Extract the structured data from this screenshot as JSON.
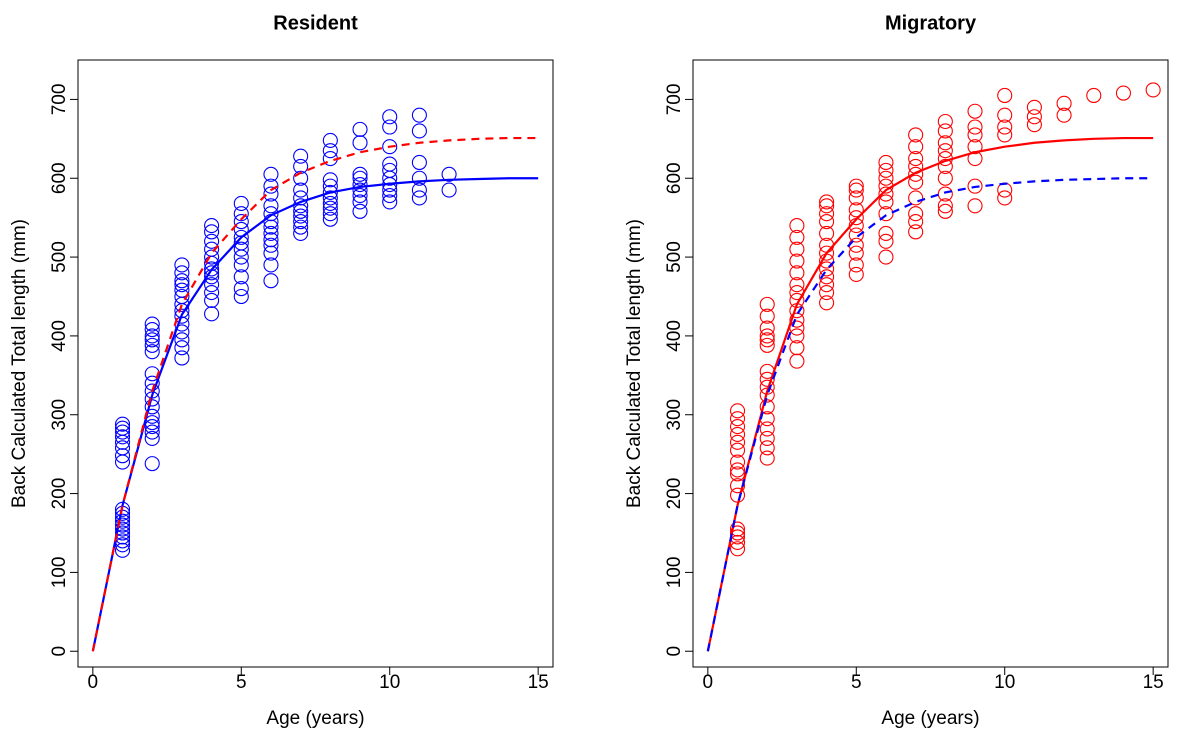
{
  "chart_data": [
    {
      "type": "scatter",
      "title": "Resident",
      "x_label": "Age (years)",
      "y_label": "Back Calculated Total length (mm)",
      "xlim": [
        -0.5,
        15.5
      ],
      "ylim": [
        -20,
        750
      ],
      "xticks": [
        0,
        5,
        10,
        15
      ],
      "yticks": [
        0,
        100,
        200,
        300,
        400,
        500,
        600,
        700
      ],
      "series": [
        {
          "style": "circles",
          "color": "#0000ff",
          "x": [
            1,
            1,
            1,
            1,
            1,
            1,
            1,
            1,
            1,
            1,
            1,
            1,
            1,
            1,
            1,
            1,
            1,
            1,
            1,
            2,
            2,
            2,
            2,
            2,
            2,
            2,
            2,
            2,
            2,
            2,
            2,
            2,
            2,
            2,
            2,
            2,
            3,
            3,
            3,
            3,
            3,
            3,
            3,
            3,
            3,
            3,
            3,
            3,
            3,
            3,
            4,
            4,
            4,
            4,
            4,
            4,
            4,
            4,
            4,
            4,
            4,
            4,
            4,
            5,
            5,
            5,
            5,
            5,
            5,
            5,
            5,
            5,
            5,
            5,
            5,
            6,
            6,
            6,
            6,
            6,
            6,
            6,
            6,
            6,
            6,
            6,
            6,
            6,
            7,
            7,
            7,
            7,
            7,
            7,
            7,
            7,
            7,
            7,
            7,
            8,
            8,
            8,
            8,
            8,
            8,
            8,
            8,
            8,
            8,
            8,
            9,
            9,
            9,
            9,
            9,
            9,
            9,
            9,
            9,
            10,
            10,
            10,
            10,
            10,
            10,
            10,
            10,
            10,
            10,
            11,
            11,
            11,
            11,
            11,
            11,
            12,
            12
          ],
          "values": [
            128,
            135,
            140,
            145,
            150,
            155,
            160,
            165,
            170,
            175,
            180,
            240,
            248,
            258,
            265,
            272,
            278,
            283,
            288,
            238,
            270,
            278,
            285,
            290,
            298,
            310,
            320,
            330,
            340,
            352,
            380,
            388,
            395,
            400,
            408,
            415,
            372,
            385,
            395,
            405,
            415,
            425,
            432,
            440,
            450,
            458,
            465,
            470,
            480,
            490,
            428,
            445,
            455,
            465,
            475,
            480,
            485,
            492,
            500,
            510,
            520,
            532,
            540,
            450,
            460,
            475,
            490,
            500,
            510,
            518,
            525,
            535,
            545,
            555,
            568,
            470,
            490,
            505,
            515,
            522,
            530,
            538,
            545,
            555,
            565,
            580,
            590,
            605,
            530,
            538,
            545,
            552,
            558,
            565,
            575,
            585,
            600,
            615,
            628,
            548,
            555,
            562,
            568,
            575,
            582,
            590,
            598,
            625,
            635,
            648,
            558,
            570,
            578,
            585,
            592,
            600,
            605,
            645,
            662,
            570,
            578,
            585,
            592,
            600,
            610,
            618,
            640,
            665,
            678,
            575,
            585,
            600,
            620,
            660,
            680,
            585,
            605
          ]
        },
        {
          "style": "solid",
          "color": "#0000ff",
          "x": [
            0,
            1,
            2,
            3,
            4,
            5,
            6,
            7,
            8,
            9,
            10,
            11,
            12,
            13,
            14,
            15
          ],
          "values": [
            0,
            185,
            325,
            427,
            484,
            525,
            553,
            570,
            582,
            589,
            593,
            596,
            598,
            599,
            600,
            600
          ]
        },
        {
          "style": "dashed",
          "color": "#ff0000",
          "x": [
            0,
            1,
            2,
            3,
            4,
            5,
            6,
            7,
            8,
            9,
            10,
            11,
            12,
            13,
            14,
            15
          ],
          "values": [
            0,
            185,
            330,
            440,
            505,
            548,
            585,
            607,
            622,
            633,
            640,
            645,
            648,
            650,
            651,
            651
          ]
        }
      ]
    },
    {
      "type": "scatter",
      "title": "Migratory",
      "x_label": "Age (years)",
      "y_label": "Back Calculated Total length (mm)",
      "xlim": [
        -0.5,
        15.5
      ],
      "ylim": [
        -20,
        750
      ],
      "xticks": [
        0,
        5,
        10,
        15
      ],
      "yticks": [
        0,
        100,
        200,
        300,
        400,
        500,
        600,
        700
      ],
      "series": [
        {
          "style": "circles",
          "color": "#ff0000",
          "x": [
            1,
            1,
            1,
            1,
            1,
            1,
            1,
            1,
            1,
            1,
            1,
            1,
            1,
            1,
            1,
            1,
            2,
            2,
            2,
            2,
            2,
            2,
            2,
            2,
            2,
            2,
            2,
            2,
            2,
            2,
            2,
            2,
            3,
            3,
            3,
            3,
            3,
            3,
            3,
            3,
            3,
            3,
            3,
            3,
            3,
            3,
            4,
            4,
            4,
            4,
            4,
            4,
            4,
            4,
            4,
            4,
            4,
            4,
            4,
            5,
            5,
            5,
            5,
            5,
            5,
            5,
            5,
            5,
            5,
            5,
            6,
            6,
            6,
            6,
            6,
            6,
            6,
            6,
            6,
            6,
            7,
            7,
            7,
            7,
            7,
            7,
            7,
            7,
            7,
            7,
            8,
            8,
            8,
            8,
            8,
            8,
            8,
            8,
            8,
            8,
            9,
            9,
            9,
            9,
            9,
            9,
            9,
            10,
            10,
            10,
            10,
            10,
            10,
            11,
            11,
            11,
            12,
            12,
            13,
            14,
            15
          ],
          "values": [
            130,
            138,
            145,
            150,
            155,
            198,
            210,
            225,
            230,
            240,
            255,
            265,
            275,
            285,
            295,
            305,
            245,
            258,
            270,
            282,
            295,
            310,
            325,
            335,
            345,
            355,
            388,
            395,
            400,
            410,
            425,
            440,
            368,
            385,
            400,
            410,
            420,
            432,
            445,
            455,
            465,
            480,
            495,
            510,
            525,
            540,
            442,
            455,
            465,
            475,
            485,
            495,
            505,
            515,
            530,
            545,
            555,
            565,
            570,
            478,
            490,
            505,
            515,
            528,
            540,
            550,
            560,
            575,
            585,
            590,
            500,
            520,
            530,
            555,
            570,
            580,
            590,
            600,
            610,
            620,
            532,
            545,
            555,
            575,
            595,
            605,
            615,
            625,
            640,
            655,
            558,
            565,
            580,
            600,
            615,
            625,
            635,
            645,
            660,
            672,
            565,
            590,
            625,
            640,
            655,
            665,
            685,
            575,
            585,
            655,
            665,
            680,
            705,
            668,
            678,
            690,
            680,
            695,
            705,
            708,
            712
          ]
        },
        {
          "style": "solid",
          "color": "#ff0000",
          "x": [
            0,
            1,
            2,
            3,
            4,
            5,
            6,
            7,
            8,
            9,
            10,
            11,
            12,
            13,
            14,
            15
          ],
          "values": [
            0,
            185,
            330,
            440,
            505,
            548,
            585,
            607,
            622,
            633,
            640,
            645,
            648,
            650,
            651,
            651
          ]
        },
        {
          "style": "dashed",
          "color": "#0000ff",
          "x": [
            0,
            1,
            2,
            3,
            4,
            5,
            6,
            7,
            8,
            9,
            10,
            11,
            12,
            13,
            14,
            15
          ],
          "values": [
            0,
            185,
            325,
            427,
            484,
            525,
            553,
            570,
            582,
            589,
            593,
            596,
            598,
            599,
            600,
            600
          ]
        }
      ]
    }
  ]
}
